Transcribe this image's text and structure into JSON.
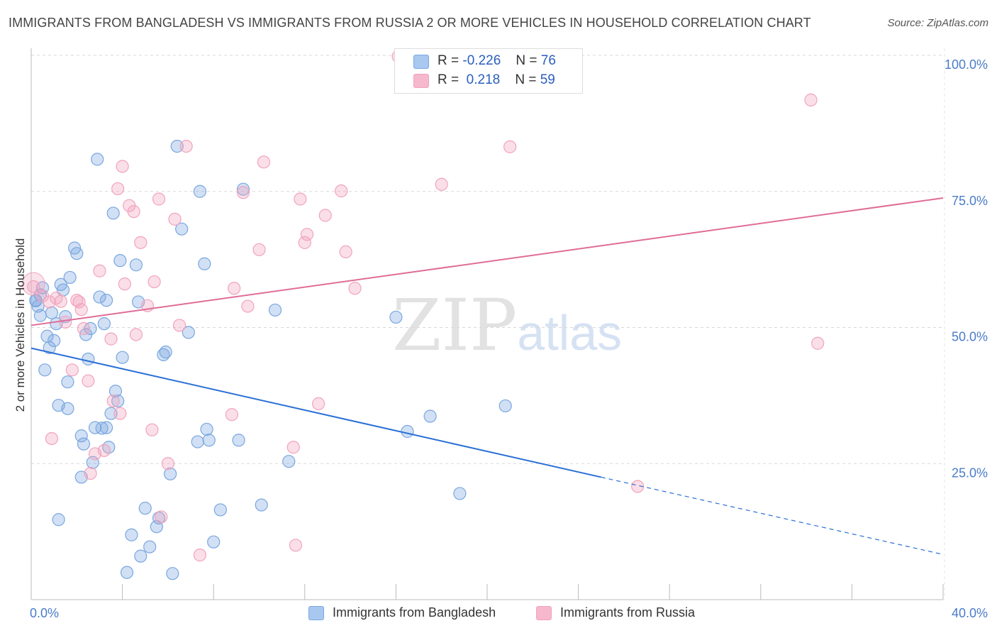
{
  "title": "IMMIGRANTS FROM BANGLADESH VS IMMIGRANTS FROM RUSSIA 2 OR MORE VEHICLES IN HOUSEHOLD CORRELATION CHART",
  "source": "Source: ZipAtlas.com",
  "watermark": {
    "zip": "ZIP",
    "atlas": "atlas"
  },
  "legend": {
    "rows": [
      {
        "r_label": "R =",
        "r_value": "-0.226",
        "n_label": "N =",
        "n_value": "76",
        "color": "#a9c8f0"
      },
      {
        "r_label": "R =",
        "r_value": " 0.218",
        "n_label": "N =",
        "n_value": "59",
        "color": "#f5b8cc"
      }
    ]
  },
  "bottom_legend": [
    {
      "label": "Immigrants from Bangladesh",
      "color": "#a9c8f0"
    },
    {
      "label": "Immigrants from Russia",
      "color": "#f5b8cc"
    }
  ],
  "chart_data": {
    "type": "scatter",
    "ylabel": "2 or more Vehicles in Household",
    "xlabel": "",
    "xlim": [
      0,
      40
    ],
    "ylim": [
      0,
      100
    ],
    "x_tick_labels": [
      "0.0%",
      "40.0%"
    ],
    "y_tick_labels": [
      "25.0%",
      "50.0%",
      "75.0%",
      "100.0%"
    ],
    "y_ticks": [
      25,
      50,
      75,
      100
    ],
    "grid": true,
    "series": [
      {
        "name": "Immigrants from Bangladesh",
        "color": "#7aa7e0",
        "line_color": "#2a6fd6",
        "trend": {
          "x0": 0,
          "y0": 46.2,
          "x1": 25,
          "y1": 22.5,
          "dash_to_x": 40,
          "dash_to_y": 8.3
        },
        "points": [
          [
            0.2,
            54.9
          ],
          [
            0.3,
            53.9
          ],
          [
            0.4,
            52.2
          ],
          [
            0.5,
            57.3
          ],
          [
            0.6,
            42.2
          ],
          [
            0.7,
            48.4
          ],
          [
            0.8,
            46.3
          ],
          [
            0.9,
            52.7
          ],
          [
            1.0,
            47.6
          ],
          [
            1.1,
            50.7
          ],
          [
            1.3,
            57.9
          ],
          [
            1.4,
            56.9
          ],
          [
            1.5,
            52.0
          ],
          [
            1.6,
            40.0
          ],
          [
            1.7,
            59.2
          ],
          [
            1.9,
            64.6
          ],
          [
            2.0,
            63.6
          ],
          [
            2.2,
            30.1
          ],
          [
            2.3,
            28.6
          ],
          [
            2.4,
            48.7
          ],
          [
            2.5,
            44.2
          ],
          [
            2.6,
            49.8
          ],
          [
            2.8,
            31.6
          ],
          [
            2.9,
            80.9
          ],
          [
            3.0,
            55.6
          ],
          [
            3.2,
            50.7
          ],
          [
            3.3,
            31.6
          ],
          [
            3.4,
            28.0
          ],
          [
            3.5,
            34.2
          ],
          [
            3.6,
            71.0
          ],
          [
            3.7,
            38.3
          ],
          [
            3.9,
            62.3
          ],
          [
            4.0,
            44.5
          ],
          [
            4.4,
            11.9
          ],
          [
            4.6,
            61.5
          ],
          [
            4.7,
            54.7
          ],
          [
            4.8,
            8.0
          ],
          [
            5.0,
            16.8
          ],
          [
            5.2,
            9.7
          ],
          [
            5.6,
            15.0
          ],
          [
            5.8,
            45.0
          ],
          [
            5.9,
            45.5
          ],
          [
            6.1,
            23.1
          ],
          [
            6.4,
            83.3
          ],
          [
            6.6,
            68.1
          ],
          [
            6.9,
            49.1
          ],
          [
            7.4,
            75.0
          ],
          [
            7.6,
            61.7
          ],
          [
            7.7,
            31.3
          ],
          [
            7.8,
            29.3
          ],
          [
            8.0,
            10.6
          ],
          [
            8.3,
            16.5
          ],
          [
            9.1,
            29.3
          ],
          [
            9.3,
            75.4
          ],
          [
            10.1,
            17.4
          ],
          [
            10.7,
            53.2
          ],
          [
            11.3,
            25.4
          ],
          [
            16.0,
            51.9
          ],
          [
            16.5,
            30.9
          ],
          [
            17.5,
            33.7
          ],
          [
            18.8,
            19.5
          ],
          [
            20.8,
            35.6
          ],
          [
            3.1,
            31.5
          ],
          [
            3.8,
            36.5
          ],
          [
            1.2,
            35.7
          ],
          [
            0.4,
            56.0
          ],
          [
            5.5,
            13.4
          ],
          [
            7.3,
            29.0
          ],
          [
            2.2,
            22.5
          ],
          [
            1.2,
            14.7
          ],
          [
            4.2,
            5.0
          ],
          [
            6.2,
            4.8
          ],
          [
            2.7,
            25.2
          ],
          [
            0.2,
            55.0
          ],
          [
            1.6,
            35.1
          ],
          [
            3.3,
            55.0
          ]
        ]
      },
      {
        "name": "Immigrants from Russia",
        "color": "#f2a3bd",
        "line_color": "#e06c97",
        "trend": {
          "x0": 0,
          "y0": 50.4,
          "x1": 40,
          "y1": 73.8
        },
        "points": [
          [
            0.1,
            57.5
          ],
          [
            0.5,
            55.8
          ],
          [
            0.8,
            54.7
          ],
          [
            0.9,
            29.6
          ],
          [
            1.3,
            54.8
          ],
          [
            1.5,
            51.0
          ],
          [
            1.8,
            42.2
          ],
          [
            2.1,
            54.7
          ],
          [
            2.2,
            53.3
          ],
          [
            2.3,
            49.8
          ],
          [
            2.5,
            40.2
          ],
          [
            2.6,
            23.2
          ],
          [
            2.8,
            26.8
          ],
          [
            3.0,
            60.4
          ],
          [
            3.2,
            27.4
          ],
          [
            3.5,
            47.9
          ],
          [
            3.6,
            36.5
          ],
          [
            3.8,
            75.5
          ],
          [
            4.0,
            79.6
          ],
          [
            4.1,
            58.0
          ],
          [
            4.3,
            72.4
          ],
          [
            4.5,
            71.3
          ],
          [
            4.6,
            48.7
          ],
          [
            4.8,
            65.6
          ],
          [
            5.1,
            54.0
          ],
          [
            5.3,
            31.2
          ],
          [
            5.4,
            58.4
          ],
          [
            5.6,
            73.6
          ],
          [
            5.7,
            15.2
          ],
          [
            6.3,
            69.9
          ],
          [
            6.5,
            50.4
          ],
          [
            6.8,
            83.3
          ],
          [
            7.4,
            8.2
          ],
          [
            8.8,
            34.0
          ],
          [
            8.9,
            57.2
          ],
          [
            9.3,
            74.8
          ],
          [
            9.5,
            53.9
          ],
          [
            10.0,
            64.3
          ],
          [
            10.2,
            80.4
          ],
          [
            11.5,
            28.0
          ],
          [
            11.6,
            10.0
          ],
          [
            11.8,
            73.6
          ],
          [
            12.0,
            65.6
          ],
          [
            12.1,
            67.1
          ],
          [
            12.6,
            36.0
          ],
          [
            12.9,
            70.6
          ],
          [
            13.6,
            75.1
          ],
          [
            13.8,
            63.9
          ],
          [
            14.2,
            57.2
          ],
          [
            16.1,
            99.8
          ],
          [
            18.0,
            76.3
          ],
          [
            21.0,
            83.2
          ],
          [
            26.6,
            20.8
          ],
          [
            34.2,
            91.8
          ],
          [
            34.5,
            47.1
          ],
          [
            1.1,
            55.4
          ],
          [
            2.0,
            55.0
          ],
          [
            6.0,
            25.0
          ],
          [
            3.9,
            34.2
          ]
        ]
      }
    ]
  }
}
